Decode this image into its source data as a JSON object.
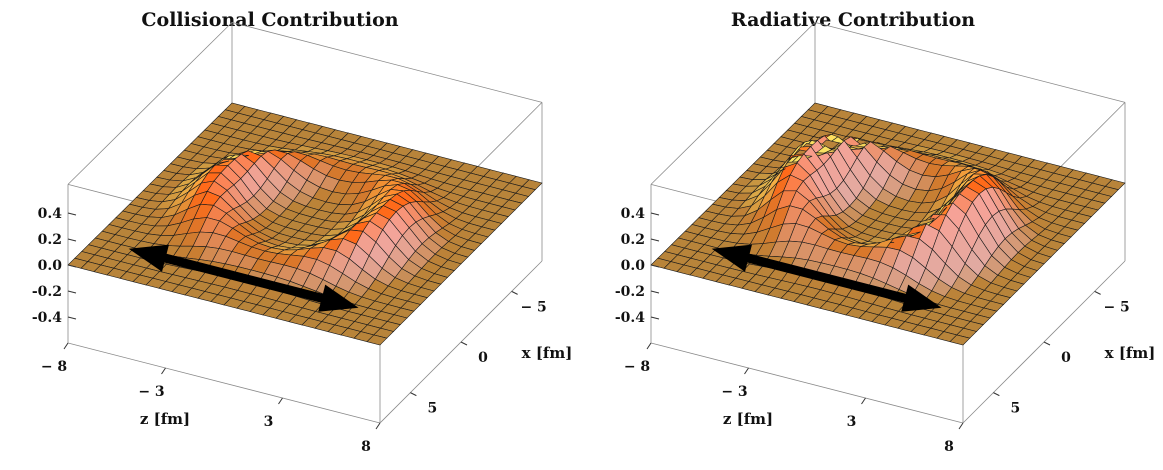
{
  "chart_data": [
    {
      "type": "surface3d",
      "title": "Collisional Contribution",
      "zlabel": "z [fm]",
      "xlabel": "x [fm]",
      "z_ticks": [
        "-8",
        "-3",
        "3",
        "8"
      ],
      "x_ticks": [
        "-5",
        "0",
        "5"
      ],
      "v_ticks": [
        "0.4",
        "0.2",
        "0.0",
        "-0.2",
        "-0.4"
      ],
      "z_range": [
        -8,
        8
      ],
      "x_range": [
        -8,
        8
      ],
      "v_range": [
        -0.4,
        0.4
      ],
      "ring_radius": 4.2,
      "peak_value": 0.3,
      "arrow": "double-headed arrow along z axis"
    },
    {
      "type": "surface3d",
      "title": "Radiative Contribution",
      "zlabel": "z [fm]",
      "xlabel": "x [fm]",
      "z_ticks": [
        "-8",
        "-3",
        "3",
        "8"
      ],
      "x_ticks": [
        "-5",
        "0",
        "5"
      ],
      "v_ticks": [
        "0.4",
        "0.2",
        "0.0",
        "-0.2",
        "-0.4"
      ],
      "z_range": [
        -8,
        8
      ],
      "x_range": [
        -8,
        8
      ],
      "v_range": [
        -0.4,
        0.4
      ],
      "ring_radius": 4.2,
      "peak_value": 0.45,
      "arrow": "double-headed arrow along z axis"
    }
  ],
  "colors": {
    "surface_base": "#b8843a",
    "peak": "#ff6a1a",
    "highlight": "#fff36a",
    "mesh": "#1a1a1a",
    "arrow": "#000000"
  }
}
